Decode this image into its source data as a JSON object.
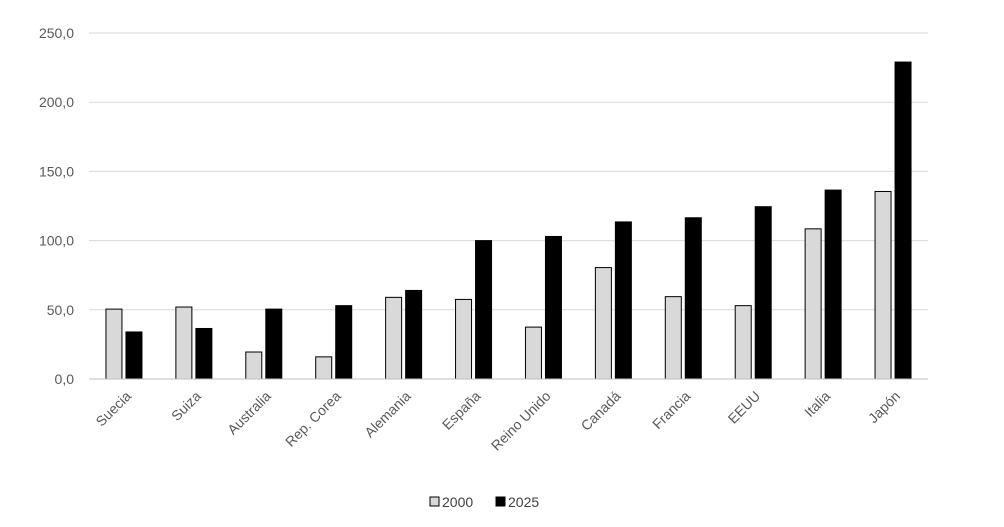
{
  "chart_data": {
    "type": "bar",
    "categories": [
      "Suecia",
      "Suiza",
      "Australia",
      "Rep. Corea",
      "Alemania",
      "España",
      "Reino Unido",
      "Canadá",
      "Francia",
      "EEUU",
      "Italia",
      "Japón"
    ],
    "series": [
      {
        "name": "2000",
        "values": [
          50.5,
          52.0,
          19.5,
          16.0,
          59.0,
          57.5,
          37.5,
          80.5,
          59.5,
          53.0,
          108.5,
          135.5
        ],
        "color": "#d9d9d9"
      },
      {
        "name": "2025",
        "values": [
          34.0,
          36.5,
          50.5,
          53.0,
          64.0,
          100.0,
          103.0,
          113.5,
          116.5,
          124.5,
          136.5,
          229.0
        ],
        "color": "#000000"
      }
    ],
    "yticks": [
      "0,0",
      "50,0",
      "100,0",
      "150,0",
      "200,0",
      "250,0"
    ],
    "ylim": [
      0,
      250
    ],
    "grid": true,
    "legend_position": "bottom"
  }
}
